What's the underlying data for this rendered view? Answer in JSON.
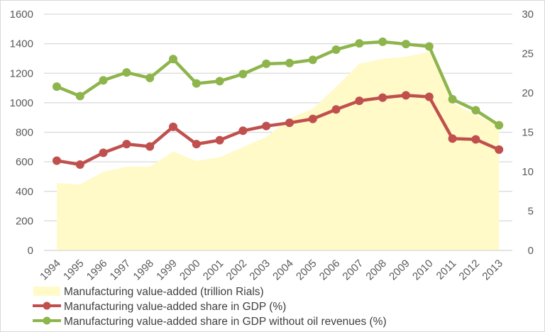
{
  "chart_data": {
    "type": "combo",
    "title": "",
    "categories": [
      "1994",
      "1995",
      "1996",
      "1997",
      "1998",
      "1999",
      "2000",
      "2001",
      "2002",
      "2003",
      "2004",
      "2005",
      "2006",
      "2007",
      "2008",
      "2009",
      "2010",
      "2011",
      "2012",
      "2013"
    ],
    "left_axis": {
      "min": 0,
      "max": 1600,
      "step": 200,
      "ticks": [
        "0",
        "200",
        "400",
        "600",
        "800",
        "1000",
        "1200",
        "1400",
        "1600"
      ]
    },
    "right_axis": {
      "min": 0,
      "max": 30,
      "step": 5,
      "ticks": [
        "0",
        "5",
        "10",
        "15",
        "20",
        "25",
        "30"
      ]
    },
    "grid": true,
    "legend_position": "bottom-left",
    "series": [
      {
        "name": "Manufacturing value-added (trillion Rials)",
        "kind": "area",
        "axis": "left",
        "color": "#fffac8",
        "values": [
          456,
          447,
          533,
          567,
          567,
          670,
          606,
          632,
          700,
          769,
          894,
          960,
          1108,
          1264,
          1298,
          1312,
          1346,
          1000,
          918,
          842
        ]
      },
      {
        "name": "Manufacturing value-added share in GDP (%)",
        "kind": "line",
        "axis": "right",
        "color": "#c0504d",
        "values": [
          11.4,
          10.9,
          12.4,
          13.5,
          13.2,
          15.7,
          13.5,
          14.0,
          15.2,
          15.8,
          16.2,
          16.7,
          17.9,
          19.0,
          19.4,
          19.7,
          19.5,
          14.2,
          14.1,
          12.8
        ]
      },
      {
        "name": "Manufacturing value-added share in GDP without oil revenues (%)",
        "kind": "line",
        "axis": "right",
        "color": "#8db54b",
        "values": [
          20.8,
          19.6,
          21.6,
          22.6,
          21.9,
          24.3,
          21.2,
          21.5,
          22.4,
          23.7,
          23.8,
          24.2,
          25.5,
          26.3,
          26.5,
          26.2,
          25.9,
          19.2,
          17.8,
          15.9
        ]
      }
    ]
  }
}
